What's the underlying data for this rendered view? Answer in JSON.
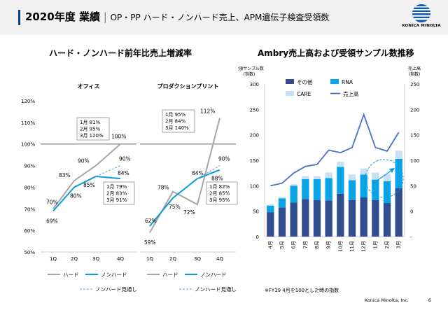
{
  "header": {
    "title_bold": "2020年度 業績",
    "separator": "|",
    "subtitle": "OP・PP ハード・ノンハード売上、APM遺伝子検査受領数",
    "logo_text": "KONICA MINOLTA"
  },
  "left_section_title": "ハード・ノンハード前年比売上増減率",
  "right_section_title": "Ambry売上高および受領サンプル数推移",
  "chart_data": [
    {
      "type": "line",
      "title": "オフィス",
      "categories": [
        "1Q",
        "2Q",
        "3Q",
        "4Q"
      ],
      "yticks": [
        "50%",
        "60%",
        "70%",
        "80%",
        "90%",
        "100%",
        "110%",
        "120%"
      ],
      "ylim": [
        50,
        120
      ],
      "series": [
        {
          "name": "ハード",
          "values": [
            70,
            83,
            90,
            100
          ]
        },
        {
          "name": "ノンハード",
          "values": [
            69,
            80,
            85,
            84
          ]
        },
        {
          "name": "ノンハード見通し",
          "values": [
            null,
            null,
            85,
            90
          ]
        }
      ],
      "point_labels": {
        "hard": [
          "70%",
          "83%",
          "90%",
          "100%"
        ],
        "nonhard": [
          "69%",
          "80%",
          "85%",
          "84%"
        ],
        "forecast_end": "90%"
      },
      "annotations": [
        {
          "lines": [
            "1月 81%",
            "2月 95%",
            "3月 120%"
          ]
        },
        {
          "lines": [
            "1月 79%",
            "2月 83%",
            "3月 91%"
          ]
        }
      ],
      "legend": "bottom"
    },
    {
      "type": "line",
      "title": "プロダクションプリント",
      "categories": [
        "1Q",
        "2Q",
        "3Q",
        "4Q"
      ],
      "ylim": [
        50,
        120
      ],
      "series": [
        {
          "name": "ハード",
          "values": [
            59,
            78,
            72,
            112
          ]
        },
        {
          "name": "ノンハード",
          "values": [
            62,
            75,
            84,
            88
          ]
        },
        {
          "name": "ノンハード見通し",
          "values": [
            null,
            null,
            84,
            90
          ]
        }
      ],
      "point_labels": {
        "hard": [
          "59%",
          "78%",
          "72%",
          "112%"
        ],
        "nonhard": [
          "62%",
          "75%",
          "84%",
          "88%"
        ],
        "forecast_end": "90%"
      },
      "annotations": [
        {
          "lines": [
            "1月 95%",
            "2月 84%",
            "3月 140%"
          ]
        },
        {
          "lines": [
            "1月 82%",
            "2月 85%",
            "3月 95%"
          ]
        }
      ],
      "legend": "bottom"
    },
    {
      "type": "bar",
      "stacked": true,
      "categories": [
        "4月",
        "5月",
        "6月",
        "7月",
        "8月",
        "9月",
        "10月",
        "11月",
        "12月",
        "1月",
        "2月",
        "3月"
      ],
      "ylabel": "受領サンプル数\n(指数)",
      "y2label": "売上高\n(指数)",
      "ylim": [
        0,
        300
      ],
      "y2lim": [
        -50,
        250
      ],
      "yticks": [
        "0",
        "50",
        "100",
        "150",
        "200",
        "250",
        "300"
      ],
      "y2ticks": [
        "-",
        "0",
        "50",
        "100",
        "150",
        "200",
        "250"
      ],
      "series": [
        {
          "name": "その他",
          "color": "#2f4d8f",
          "values": [
            48,
            57,
            67,
            74,
            72,
            71,
            84,
            72,
            77,
            72,
            66,
            95
          ]
        },
        {
          "name": "RNA",
          "color": "#09a3e8",
          "values": [
            13,
            18,
            33,
            39,
            41,
            44,
            53,
            39,
            45,
            40,
            43,
            58
          ]
        },
        {
          "name": "CARE",
          "color": "#c9dff2",
          "values": [
            2,
            3,
            3,
            6,
            6,
            11,
            10,
            11,
            12,
            14,
            14,
            16
          ]
        },
        {
          "name": "売上高",
          "type": "line",
          "color": "#4472c4",
          "values": [
            50,
            55,
            75,
            88,
            92,
            120,
            115,
            125,
            190,
            125,
            118,
            155
          ]
        }
      ],
      "legend": "top",
      "note": "※FY19 4月を100とした時の指数"
    }
  ],
  "footer": {
    "company": "Konica Minolta, Inc.",
    "page": "6"
  }
}
